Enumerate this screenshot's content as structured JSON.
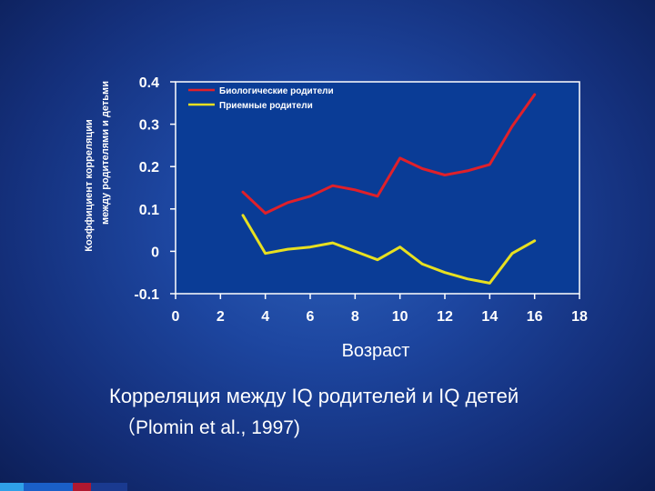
{
  "chart_data": {
    "type": "line",
    "ylabel_lines": [
      "Коэффициент корреляции",
      "между родителями и детьми"
    ],
    "xlabel": "Возраст",
    "xlim": [
      0,
      18
    ],
    "ylim": [
      -0.1,
      0.4
    ],
    "x_ticks": [
      "0",
      "2",
      "4",
      "6",
      "8",
      "10",
      "12",
      "14",
      "16",
      "18"
    ],
    "y_ticks": [
      "0.4",
      "0.3",
      "0.2",
      "0.1",
      "0",
      "-0.1"
    ],
    "grid": false,
    "legend_position": "top-left",
    "series": [
      {
        "name": "Биологические родители",
        "color": "#e0202a",
        "x": [
          3,
          4,
          5,
          6,
          7,
          8,
          9,
          10,
          11,
          12,
          13,
          14,
          15,
          16
        ],
        "y": [
          0.14,
          0.09,
          0.115,
          0.13,
          0.155,
          0.145,
          0.13,
          0.22,
          0.195,
          0.18,
          0.19,
          0.205,
          0.295,
          0.37
        ]
      },
      {
        "name": "Приемные родители",
        "color": "#e8e020",
        "x": [
          3,
          4,
          5,
          6,
          7,
          8,
          9,
          10,
          11,
          12,
          13,
          14,
          15,
          16
        ],
        "y": [
          0.085,
          -0.005,
          0.005,
          0.01,
          0.02,
          0.0,
          -0.02,
          0.01,
          -0.03,
          -0.05,
          -0.065,
          -0.075,
          -0.005,
          0.025
        ]
      }
    ]
  },
  "caption": {
    "title": "Корреляция между IQ родителей и IQ детей",
    "source": "（Plomin et al., 1997)"
  },
  "colors": {
    "plot_background": "#0a3c96",
    "plot_border": "#ffffff",
    "bottom_strip": [
      "#2fa0e8",
      "#1a5fc8",
      "#b01830",
      "#1a3a90"
    ]
  }
}
